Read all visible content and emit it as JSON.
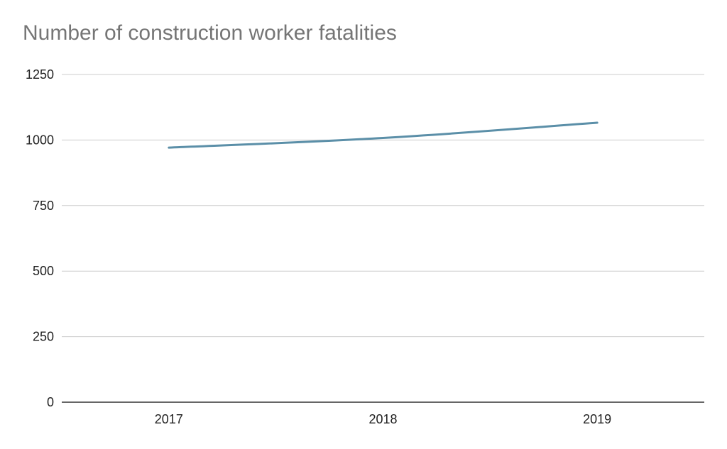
{
  "chart_data": {
    "type": "line",
    "title": "Number of construction worker fatalities",
    "xlabel": "",
    "ylabel": "",
    "categories": [
      "2017",
      "2018",
      "2019"
    ],
    "series": [
      {
        "values": [
          971,
          1008,
          1066
        ],
        "color": "#5b8fa8"
      }
    ],
    "ylim": [
      0,
      1250
    ],
    "yticks": [
      0,
      250,
      500,
      750,
      1000,
      1250
    ],
    "grid": true,
    "legend": "none"
  }
}
